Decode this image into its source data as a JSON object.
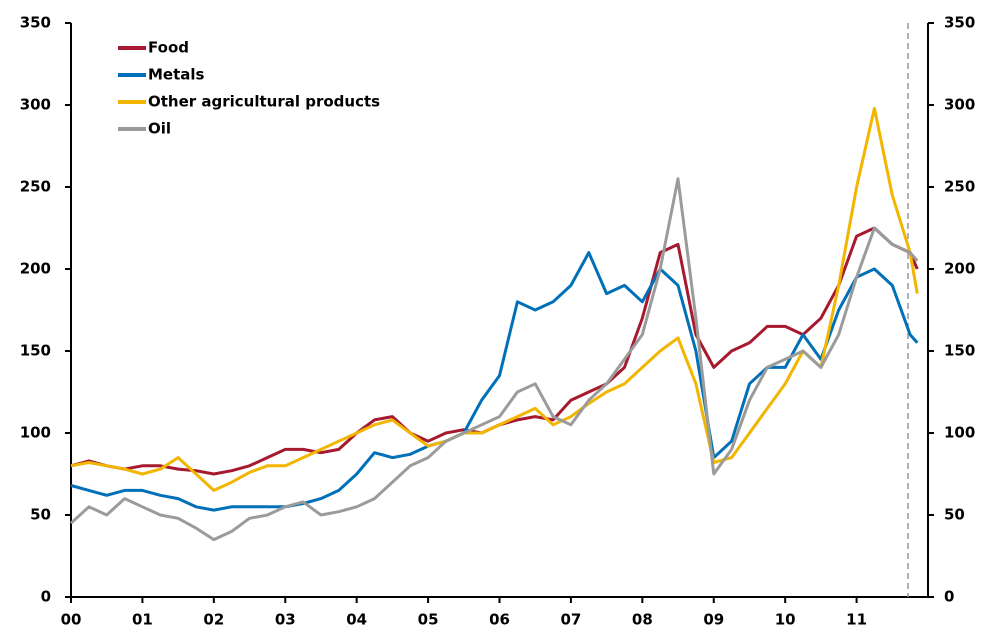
{
  "chart_data": {
    "type": "line",
    "x": [
      0,
      0.25,
      0.5,
      0.75,
      1,
      1.25,
      1.5,
      1.75,
      2,
      2.25,
      2.5,
      2.75,
      3,
      3.25,
      3.5,
      3.75,
      4,
      4.25,
      4.5,
      4.75,
      5,
      5.25,
      5.5,
      5.75,
      6,
      6.25,
      6.5,
      6.75,
      7,
      7.25,
      7.5,
      7.75,
      8,
      8.25,
      8.5,
      8.75,
      9,
      9.25,
      9.5,
      9.75,
      10,
      10.25,
      10.5,
      10.75,
      11,
      11.25,
      11.5,
      11.75,
      11.85
    ],
    "series": [
      {
        "name": "Food",
        "color": "#a6192e",
        "values": [
          80,
          83,
          80,
          78,
          80,
          80,
          78,
          77,
          75,
          77,
          80,
          85,
          90,
          90,
          88,
          90,
          100,
          108,
          110,
          100,
          95,
          100,
          102,
          100,
          105,
          108,
          110,
          108,
          120,
          125,
          130,
          140,
          170,
          210,
          215,
          160,
          140,
          150,
          155,
          165,
          165,
          160,
          170,
          190,
          220,
          225,
          215,
          210,
          200
        ]
      },
      {
        "name": "Metals",
        "color": "#0070b8",
        "values": [
          68,
          65,
          62,
          65,
          65,
          62,
          60,
          55,
          53,
          55,
          55,
          55,
          55,
          57,
          60,
          65,
          75,
          88,
          85,
          87,
          92,
          95,
          100,
          120,
          135,
          180,
          175,
          180,
          190,
          210,
          185,
          190,
          180,
          200,
          190,
          150,
          85,
          95,
          130,
          140,
          140,
          160,
          145,
          175,
          195,
          200,
          190,
          160,
          155
        ]
      },
      {
        "name": "Other agricultural products",
        "color": "#f2b500",
        "values": [
          80,
          82,
          80,
          78,
          75,
          78,
          85,
          75,
          65,
          70,
          76,
          80,
          80,
          85,
          90,
          95,
          100,
          105,
          108,
          100,
          92,
          95,
          100,
          100,
          105,
          110,
          115,
          105,
          110,
          118,
          125,
          130,
          140,
          150,
          158,
          130,
          82,
          85,
          100,
          115,
          130,
          150,
          140,
          190,
          250,
          298,
          245,
          210,
          185
        ]
      },
      {
        "name": "Oil",
        "color": "#9b9b9b",
        "values": [
          45,
          55,
          50,
          60,
          55,
          50,
          48,
          42,
          35,
          40,
          48,
          50,
          55,
          58,
          50,
          52,
          55,
          60,
          70,
          80,
          85,
          95,
          100,
          105,
          110,
          125,
          130,
          110,
          105,
          120,
          130,
          145,
          160,
          200,
          255,
          170,
          75,
          90,
          120,
          140,
          145,
          150,
          140,
          160,
          195,
          225,
          215,
          210,
          205
        ]
      }
    ],
    "xlim": [
      0,
      12
    ],
    "xticks": [
      {
        "value": 0,
        "label": "00"
      },
      {
        "value": 1,
        "label": "01"
      },
      {
        "value": 2,
        "label": "02"
      },
      {
        "value": 3,
        "label": "03"
      },
      {
        "value": 4,
        "label": "04"
      },
      {
        "value": 5,
        "label": "05"
      },
      {
        "value": 6,
        "label": "06"
      },
      {
        "value": 7,
        "label": "07"
      },
      {
        "value": 8,
        "label": "08"
      },
      {
        "value": 9,
        "label": "09"
      },
      {
        "value": 10,
        "label": "10"
      },
      {
        "value": 11,
        "label": "11"
      }
    ],
    "ylim": [
      0,
      350
    ],
    "yticks": [
      0,
      50,
      100,
      150,
      200,
      250,
      300,
      350
    ],
    "vline": 11.72,
    "legend": "upper-left"
  }
}
